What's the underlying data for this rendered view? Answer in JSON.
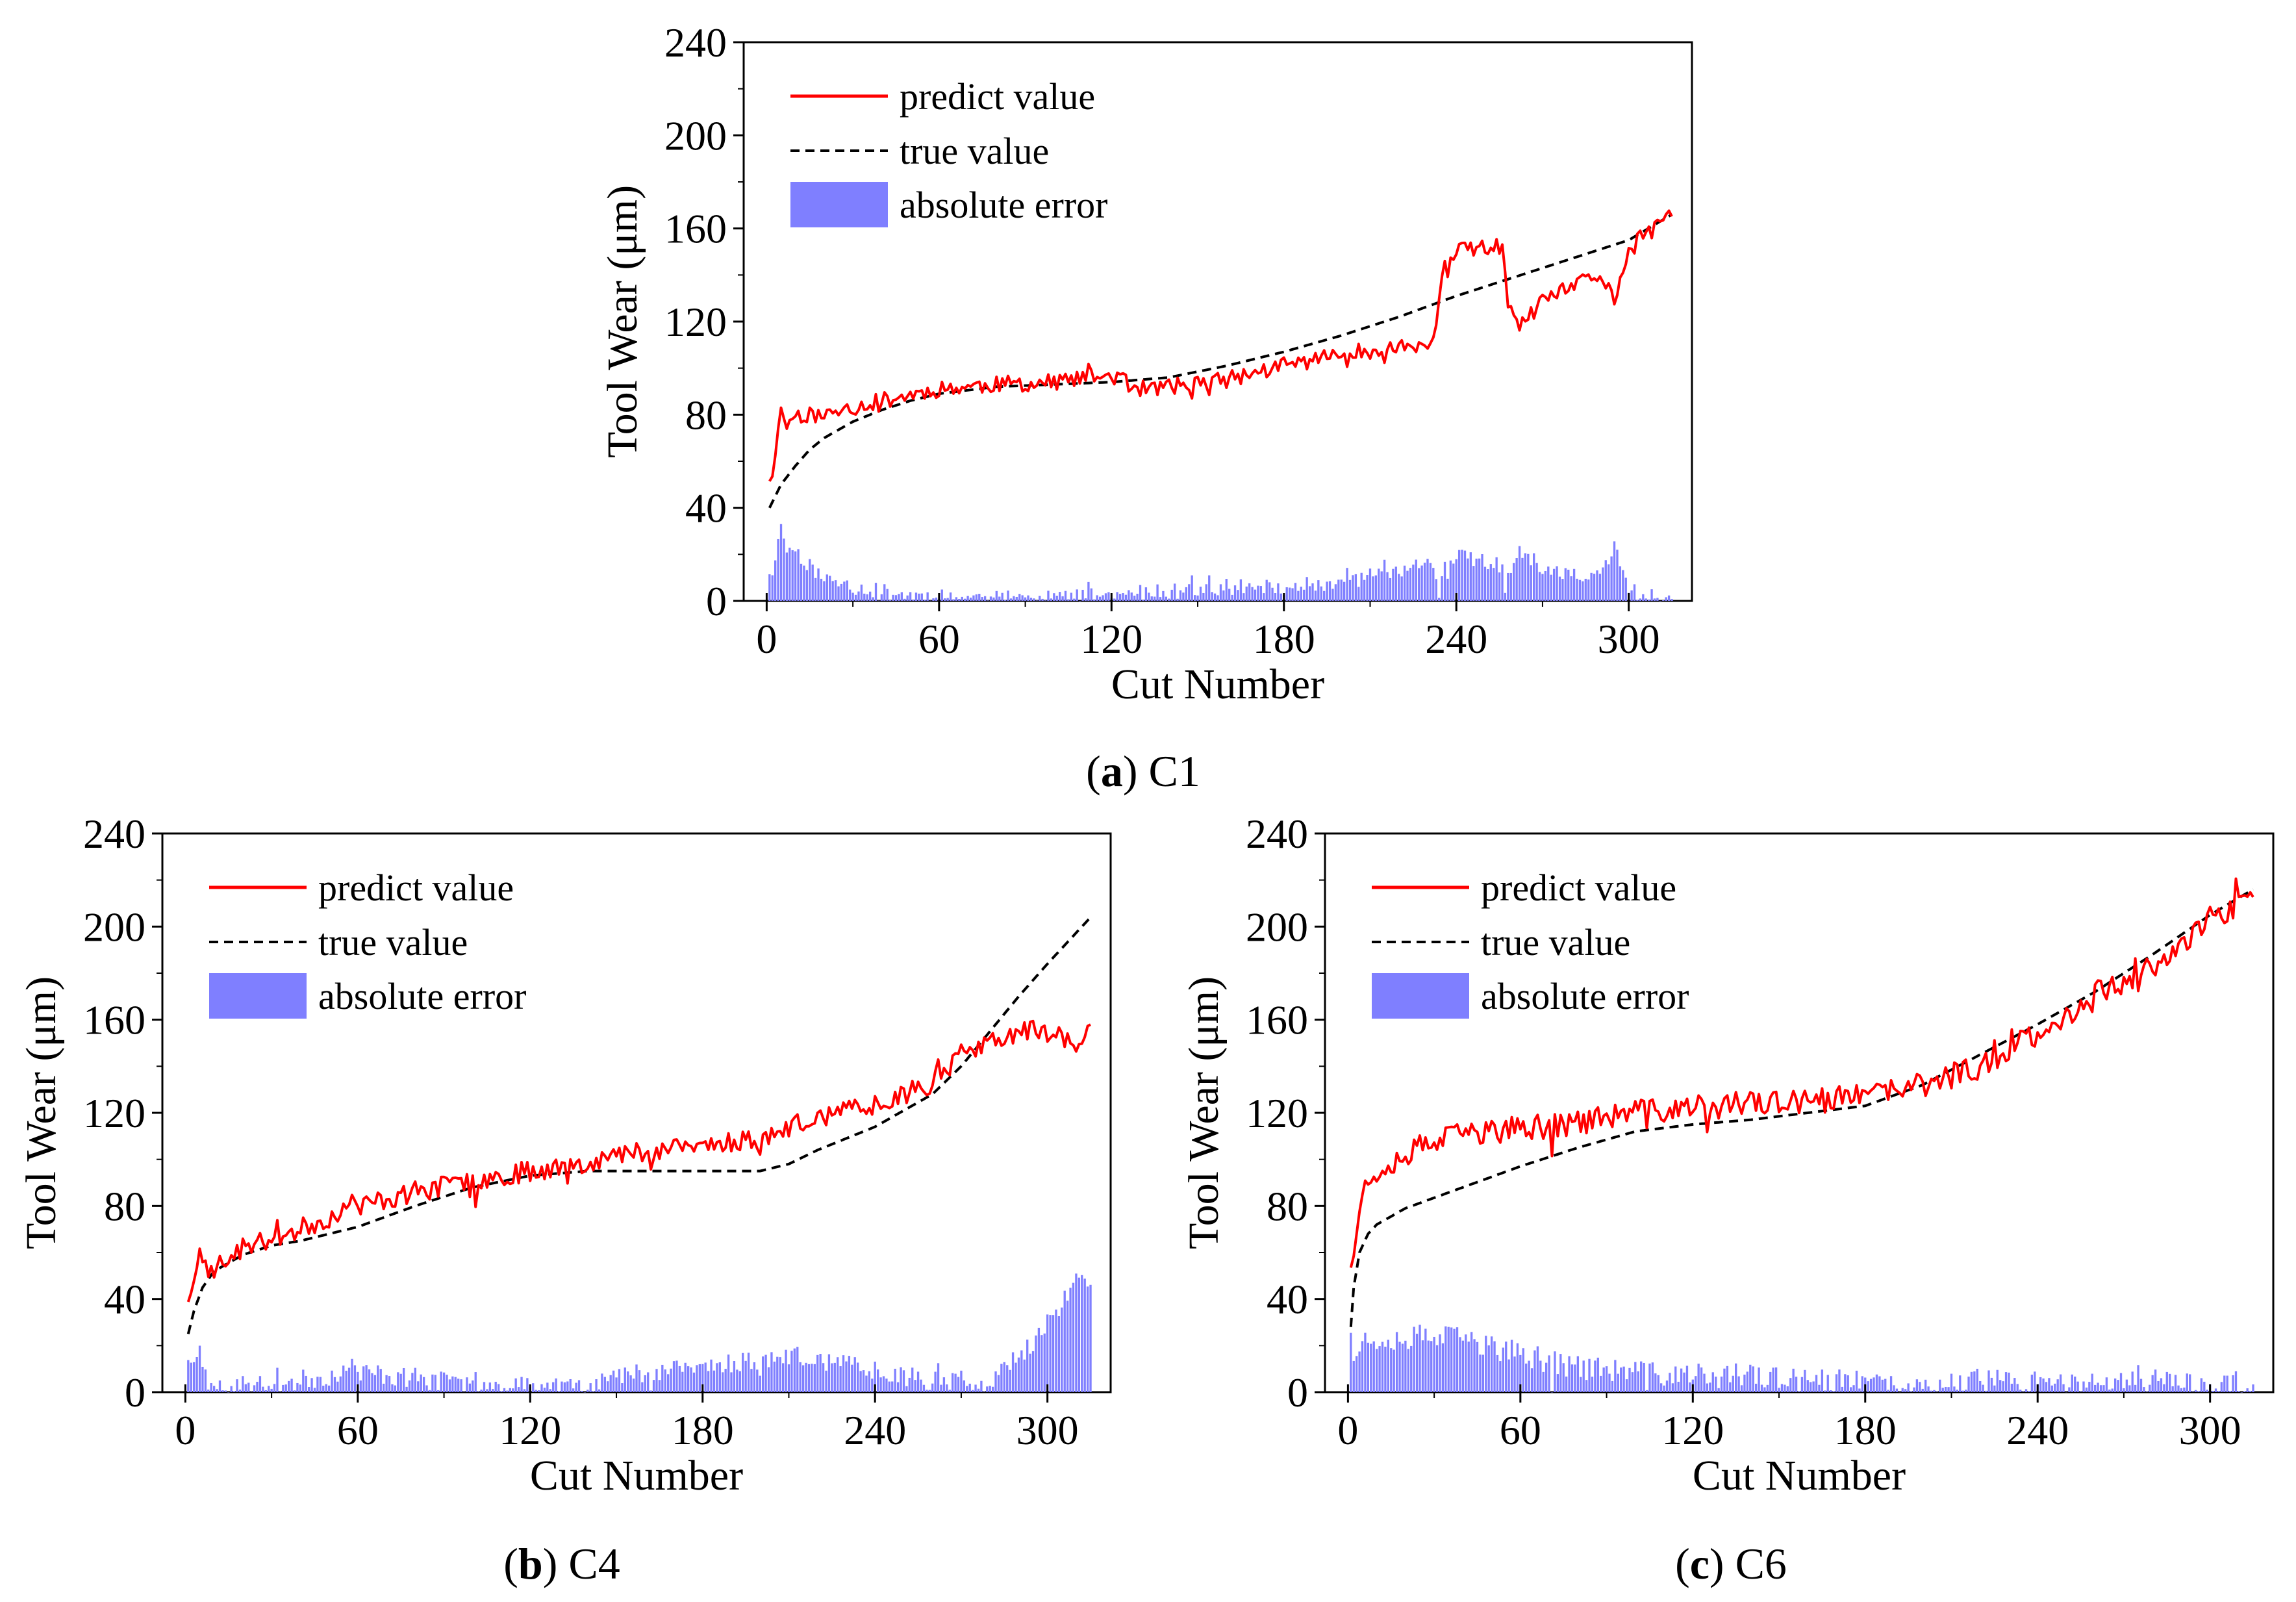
{
  "colors": {
    "predict": "#ff0000",
    "true": "#000000",
    "error": "#7f7fff"
  },
  "chart_data": [
    {
      "id": "c1",
      "type": "line",
      "caption_letter": "a",
      "caption_label": "C1",
      "xlabel": "Cut Number",
      "ylabel": "Tool Wear (μm)",
      "xlim": [
        -8,
        322
      ],
      "ylim": [
        0,
        240
      ],
      "xticks": [
        "0",
        "60",
        "120",
        "180",
        "240",
        "300"
      ],
      "yticks": [
        "0",
        "40",
        "80",
        "120",
        "160",
        "200",
        "240"
      ],
      "legend": {
        "predict": "predict value",
        "true": "true value",
        "error": "absolute error"
      },
      "n": 315,
      "true_anchors": [
        [
          1,
          40
        ],
        [
          5,
          50
        ],
        [
          10,
          58
        ],
        [
          15,
          65
        ],
        [
          20,
          70
        ],
        [
          30,
          77
        ],
        [
          40,
          82
        ],
        [
          50,
          86
        ],
        [
          60,
          89
        ],
        [
          80,
          92
        ],
        [
          100,
          93
        ],
        [
          120,
          94
        ],
        [
          140,
          96
        ],
        [
          160,
          101
        ],
        [
          180,
          107
        ],
        [
          200,
          114
        ],
        [
          220,
          122
        ],
        [
          240,
          131
        ],
        [
          260,
          139
        ],
        [
          280,
          147
        ],
        [
          300,
          155
        ],
        [
          315,
          166
        ]
      ],
      "predict_anchors": [
        [
          1,
          53
        ],
        [
          3,
          60
        ],
        [
          5,
          85
        ],
        [
          7,
          75
        ],
        [
          10,
          80
        ],
        [
          20,
          80
        ],
        [
          40,
          86
        ],
        [
          60,
          91
        ],
        [
          80,
          93
        ],
        [
          100,
          94
        ],
        [
          120,
          97
        ],
        [
          130,
          91
        ],
        [
          140,
          92
        ],
        [
          160,
          95
        ],
        [
          180,
          101
        ],
        [
          200,
          106
        ],
        [
          220,
          109
        ],
        [
          232,
          110
        ],
        [
          236,
          145
        ],
        [
          240,
          150
        ],
        [
          250,
          152
        ],
        [
          256,
          152
        ],
        [
          258,
          125
        ],
        [
          262,
          118
        ],
        [
          270,
          128
        ],
        [
          280,
          135
        ],
        [
          290,
          140
        ],
        [
          295,
          130
        ],
        [
          300,
          150
        ],
        [
          315,
          166
        ]
      ],
      "predict_noise": 3.5,
      "seed": 11
    },
    {
      "id": "c4",
      "type": "line",
      "caption_letter": "b",
      "caption_label": "C4",
      "xlabel": "Cut Number",
      "ylabel": "Tool Wear (μm)",
      "xlim": [
        -8,
        322
      ],
      "ylim": [
        0,
        240
      ],
      "xticks": [
        "0",
        "60",
        "120",
        "180",
        "240",
        "300"
      ],
      "yticks": [
        "0",
        "40",
        "80",
        "120",
        "160",
        "200",
        "240"
      ],
      "legend": {
        "predict": "predict value",
        "true": "true value",
        "error": "absolute error"
      },
      "n": 315,
      "true_anchors": [
        [
          1,
          25
        ],
        [
          3,
          35
        ],
        [
          6,
          45
        ],
        [
          10,
          52
        ],
        [
          20,
          59
        ],
        [
          30,
          63
        ],
        [
          40,
          65
        ],
        [
          60,
          71
        ],
        [
          80,
          80
        ],
        [
          100,
          88
        ],
        [
          120,
          93
        ],
        [
          140,
          95
        ],
        [
          160,
          95
        ],
        [
          180,
          95
        ],
        [
          200,
          95
        ],
        [
          210,
          98
        ],
        [
          220,
          104
        ],
        [
          240,
          114
        ],
        [
          260,
          128
        ],
        [
          270,
          140
        ],
        [
          280,
          155
        ],
        [
          290,
          170
        ],
        [
          300,
          184
        ],
        [
          315,
          204
        ]
      ],
      "predict_anchors": [
        [
          1,
          40
        ],
        [
          3,
          45
        ],
        [
          5,
          58
        ],
        [
          8,
          52
        ],
        [
          15,
          57
        ],
        [
          20,
          62
        ],
        [
          30,
          66
        ],
        [
          40,
          70
        ],
        [
          60,
          80
        ],
        [
          80,
          86
        ],
        [
          100,
          91
        ],
        [
          120,
          95
        ],
        [
          140,
          99
        ],
        [
          160,
          104
        ],
        [
          180,
          106
        ],
        [
          200,
          109
        ],
        [
          220,
          118
        ],
        [
          240,
          124
        ],
        [
          260,
          133
        ],
        [
          270,
          145
        ],
        [
          280,
          150
        ],
        [
          290,
          155
        ],
        [
          300,
          155
        ],
        [
          310,
          150
        ],
        [
          315,
          155
        ]
      ],
      "predict_noise": 4.5,
      "seed": 23
    },
    {
      "id": "c6",
      "type": "line",
      "caption_letter": "c",
      "caption_label": "C6",
      "xlabel": "Cut Number",
      "ylabel": "Tool Wear (μm)",
      "xlim": [
        -8,
        322
      ],
      "ylim": [
        0,
        240
      ],
      "xticks": [
        "0",
        "60",
        "120",
        "180",
        "240",
        "300"
      ],
      "yticks": [
        "0",
        "40",
        "80",
        "120",
        "160",
        "200",
        "240"
      ],
      "legend": {
        "predict": "predict value",
        "true": "true value",
        "error": "absolute error"
      },
      "n": 315,
      "true_anchors": [
        [
          1,
          28
        ],
        [
          2,
          45
        ],
        [
          4,
          60
        ],
        [
          7,
          68
        ],
        [
          10,
          72
        ],
        [
          20,
          79
        ],
        [
          40,
          88
        ],
        [
          60,
          97
        ],
        [
          80,
          105
        ],
        [
          100,
          112
        ],
        [
          120,
          115
        ],
        [
          140,
          117
        ],
        [
          160,
          120
        ],
        [
          180,
          123
        ],
        [
          200,
          132
        ],
        [
          220,
          145
        ],
        [
          240,
          158
        ],
        [
          260,
          172
        ],
        [
          280,
          188
        ],
        [
          300,
          205
        ],
        [
          315,
          216
        ]
      ],
      "predict_anchors": [
        [
          1,
          52
        ],
        [
          3,
          75
        ],
        [
          6,
          88
        ],
        [
          10,
          95
        ],
        [
          20,
          103
        ],
        [
          40,
          111
        ],
        [
          60,
          113
        ],
        [
          80,
          116
        ],
        [
          100,
          120
        ],
        [
          120,
          122
        ],
        [
          140,
          124
        ],
        [
          160,
          124
        ],
        [
          180,
          127
        ],
        [
          200,
          132
        ],
        [
          220,
          140
        ],
        [
          240,
          155
        ],
        [
          260,
          170
        ],
        [
          280,
          183
        ],
        [
          300,
          203
        ],
        [
          315,
          211
        ]
      ],
      "predict_noise": 5.5,
      "seed": 37
    }
  ]
}
